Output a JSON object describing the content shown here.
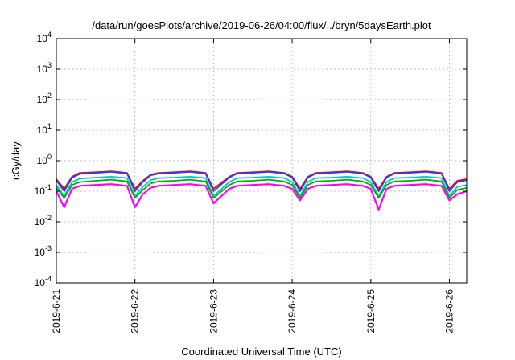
{
  "chart_data": {
    "type": "line",
    "title": "/data/run/goesPlots/archive/2019-06-26/04:00/flux/../bryn/5daysEarth.plot",
    "xlabel": "Coordinated Universal Time (UTC)",
    "ylabel": "cGy/day",
    "yscale": "log",
    "ylim": [
      0.0001,
      10000
    ],
    "xlim": [
      0,
      5.22
    ],
    "grid": true,
    "y_ticks": [
      {
        "value": 0.0001,
        "base": "10",
        "exp": "-4"
      },
      {
        "value": 0.001,
        "base": "10",
        "exp": "-3"
      },
      {
        "value": 0.01,
        "base": "10",
        "exp": "-2"
      },
      {
        "value": 0.1,
        "base": "10",
        "exp": "-1"
      },
      {
        "value": 1,
        "base": "10",
        "exp": "0"
      },
      {
        "value": 10,
        "base": "10",
        "exp": "1"
      },
      {
        "value": 100,
        "base": "10",
        "exp": "2"
      },
      {
        "value": 1000,
        "base": "10",
        "exp": "3"
      },
      {
        "value": 10000,
        "base": "10",
        "exp": "4"
      }
    ],
    "x_ticks": [
      {
        "value": 0,
        "label": "2019-6-21"
      },
      {
        "value": 1,
        "label": "2019-6-22"
      },
      {
        "value": 2,
        "label": "2019-6-23"
      },
      {
        "value": 3,
        "label": "2019-6-24"
      },
      {
        "value": 4,
        "label": "2019-6-25"
      },
      {
        "value": 5,
        "label": "2019-6-26"
      }
    ],
    "x": [
      0.0,
      0.1,
      0.2,
      0.3,
      0.5,
      0.7,
      0.9,
      1.0,
      1.1,
      1.2,
      1.3,
      1.5,
      1.7,
      1.9,
      2.0,
      2.2,
      2.3,
      2.5,
      2.7,
      2.9,
      3.0,
      3.1,
      3.2,
      3.3,
      3.5,
      3.7,
      3.9,
      4.0,
      4.1,
      4.2,
      4.3,
      4.5,
      4.7,
      4.9,
      5.0,
      5.1,
      5.22
    ],
    "series": [
      {
        "color": "#ff0000",
        "values": [
          0.25,
          0.12,
          0.3,
          0.4,
          0.42,
          0.45,
          0.4,
          0.12,
          0.22,
          0.35,
          0.4,
          0.42,
          0.45,
          0.4,
          0.12,
          0.3,
          0.4,
          0.42,
          0.45,
          0.4,
          0.3,
          0.12,
          0.3,
          0.4,
          0.42,
          0.45,
          0.4,
          0.3,
          0.12,
          0.3,
          0.4,
          0.42,
          0.45,
          0.4,
          0.12,
          0.22,
          0.25
        ]
      },
      {
        "color": "#2040ff",
        "values": [
          0.23,
          0.1,
          0.28,
          0.37,
          0.4,
          0.43,
          0.38,
          0.1,
          0.2,
          0.33,
          0.38,
          0.4,
          0.43,
          0.38,
          0.1,
          0.28,
          0.38,
          0.4,
          0.43,
          0.38,
          0.28,
          0.1,
          0.28,
          0.38,
          0.4,
          0.43,
          0.38,
          0.28,
          0.1,
          0.28,
          0.38,
          0.4,
          0.43,
          0.38,
          0.1,
          0.2,
          0.23
        ]
      },
      {
        "color": "#00c8c8",
        "values": [
          0.16,
          0.07,
          0.2,
          0.26,
          0.28,
          0.3,
          0.27,
          0.07,
          0.14,
          0.23,
          0.27,
          0.28,
          0.3,
          0.27,
          0.07,
          0.2,
          0.27,
          0.28,
          0.3,
          0.27,
          0.2,
          0.07,
          0.2,
          0.27,
          0.28,
          0.3,
          0.27,
          0.2,
          0.07,
          0.2,
          0.27,
          0.28,
          0.3,
          0.27,
          0.07,
          0.14,
          0.16
        ]
      },
      {
        "color": "#00b000",
        "values": [
          0.13,
          0.06,
          0.16,
          0.2,
          0.22,
          0.24,
          0.21,
          0.06,
          0.11,
          0.18,
          0.21,
          0.22,
          0.24,
          0.21,
          0.06,
          0.16,
          0.21,
          0.22,
          0.24,
          0.21,
          0.16,
          0.06,
          0.16,
          0.21,
          0.22,
          0.24,
          0.21,
          0.16,
          0.06,
          0.16,
          0.21,
          0.22,
          0.24,
          0.21,
          0.06,
          0.11,
          0.13
        ]
      },
      {
        "color": "#ff00ff",
        "values": [
          0.1,
          0.03,
          0.12,
          0.15,
          0.16,
          0.17,
          0.15,
          0.03,
          0.08,
          0.13,
          0.15,
          0.16,
          0.17,
          0.15,
          0.04,
          0.12,
          0.15,
          0.16,
          0.17,
          0.15,
          0.12,
          0.05,
          0.12,
          0.15,
          0.16,
          0.17,
          0.15,
          0.12,
          0.025,
          0.12,
          0.15,
          0.16,
          0.17,
          0.15,
          0.05,
          0.08,
          0.1
        ]
      }
    ]
  }
}
